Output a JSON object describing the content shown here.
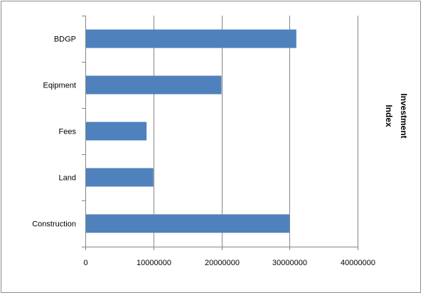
{
  "chart_data": {
    "type": "bar",
    "orientation": "horizontal",
    "categories": [
      "BDGP",
      "Eqipment",
      "Fees",
      "Land",
      "Construction"
    ],
    "series": [
      {
        "name": "Investment Index",
        "values": [
          31000000,
          20000000,
          9000000,
          10000000,
          30000000
        ],
        "color": "#4f81bd"
      }
    ],
    "x_ticks": [
      "0",
      "10000000",
      "20000000",
      "30000000",
      "40000000"
    ],
    "xlim": [
      0,
      40000000
    ],
    "xlabel": "",
    "ylabel": "",
    "title": "",
    "grid": "vertical major gridlines",
    "legend_position": "right",
    "colors": {
      "bar": "#4f81bd",
      "gridline": "#868686",
      "axis": "#868686",
      "border": "#8c8c8c"
    }
  },
  "legend": {
    "line1": "Investment",
    "line2": "Index"
  }
}
